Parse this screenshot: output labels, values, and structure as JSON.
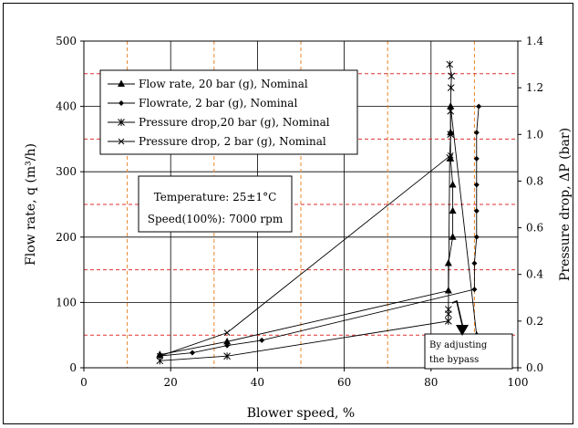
{
  "chart_data": {
    "type": "line",
    "xlabel": "Blower speed, %",
    "ylabel": "Flow rate, q (m³/h)",
    "y2label": "Pressure drop, ΔP (bar)",
    "xlim": [
      0,
      100
    ],
    "ylim": [
      0,
      500
    ],
    "y2lim": [
      0,
      1.4
    ],
    "x_ticks": [
      "0",
      "20",
      "40",
      "60",
      "80",
      "100"
    ],
    "y_ticks": [
      "0",
      "100",
      "200",
      "300",
      "400",
      "500"
    ],
    "y2_ticks": [
      "0.0",
      "0.2",
      "0.4",
      "0.6",
      "0.8",
      "1.0",
      "1.2",
      "1.4"
    ],
    "grid": true,
    "legend_placement": "top-left",
    "series": [
      {
        "name": "Flow rate, 20 bar (g), Nominal",
        "axis": "left",
        "marker": "triangle",
        "points": [
          [
            17.5,
            20
          ],
          [
            33,
            40
          ],
          [
            84,
            118
          ],
          [
            84,
            160
          ],
          [
            85,
            200
          ],
          [
            85,
            240
          ],
          [
            85,
            280
          ],
          [
            84.5,
            320
          ],
          [
            84.5,
            360
          ],
          [
            84.5,
            400
          ],
          [
            90.5,
            50
          ]
        ]
      },
      {
        "name": "Flowrate, 2 bar (g), Nominal",
        "axis": "left",
        "marker": "diamond",
        "points": [
          [
            17.5,
            18
          ],
          [
            25,
            23
          ],
          [
            33,
            34
          ],
          [
            41,
            42
          ],
          [
            90,
            120
          ],
          [
            90,
            160
          ],
          [
            90.5,
            200
          ],
          [
            90.5,
            240
          ],
          [
            90.5,
            280
          ],
          [
            90.5,
            320
          ],
          [
            90.5,
            360
          ],
          [
            91,
            400
          ]
        ]
      },
      {
        "name": "Pressure drop,20 bar (g), Nominal",
        "axis": "right",
        "marker": "star",
        "points": [
          [
            17.5,
            0.03
          ],
          [
            33,
            0.05
          ],
          [
            84,
            0.2
          ],
          [
            84,
            0.23
          ],
          [
            84,
            0.25
          ],
          [
            84.3,
            0.9
          ],
          [
            84.5,
            1.0
          ],
          [
            84.5,
            1.1
          ],
          [
            84.6,
            1.2
          ],
          [
            84.7,
            1.25
          ],
          [
            84.3,
            1.3
          ]
        ]
      },
      {
        "name": "Pressure drop, 2 bar (g), Nominal",
        "axis": "right",
        "marker": "x",
        "points": [
          [
            17.5,
            0.05
          ],
          [
            33,
            0.15
          ],
          [
            84.5,
            0.91
          ]
        ]
      }
    ],
    "annotations": {
      "box_lines": [
        "Temperature: 25±1°C",
        "Speed(100%): 7000 rpm"
      ],
      "bypass_lines": [
        "By adjusting",
        "the bypass"
      ]
    }
  }
}
